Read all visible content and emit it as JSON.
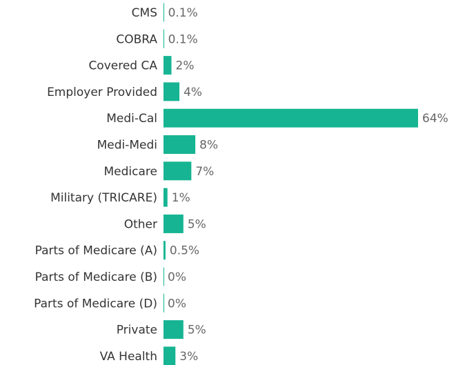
{
  "chart_data": {
    "type": "bar",
    "orientation": "horizontal",
    "categories": [
      "CMS",
      "COBRA",
      "Covered CA",
      "Employer Provided",
      "Medi-Cal",
      "Medi-Medi",
      "Medicare",
      "Military (TRICARE)",
      "Other",
      "Parts of Medicare (A)",
      "Parts of Medicare (B)",
      "Parts of Medicare (D)",
      "Private",
      "VA Health"
    ],
    "values": [
      0.1,
      0.1,
      2,
      4,
      64,
      8,
      7,
      1,
      5,
      0.5,
      0,
      0,
      5,
      3
    ],
    "value_labels": [
      "0.1%",
      "0.1%",
      "2%",
      "4%",
      "64%",
      "8%",
      "7%",
      "1%",
      "5%",
      "0.5%",
      "0%",
      "0%",
      "5%",
      "3%"
    ],
    "color": "#16b492"
  }
}
